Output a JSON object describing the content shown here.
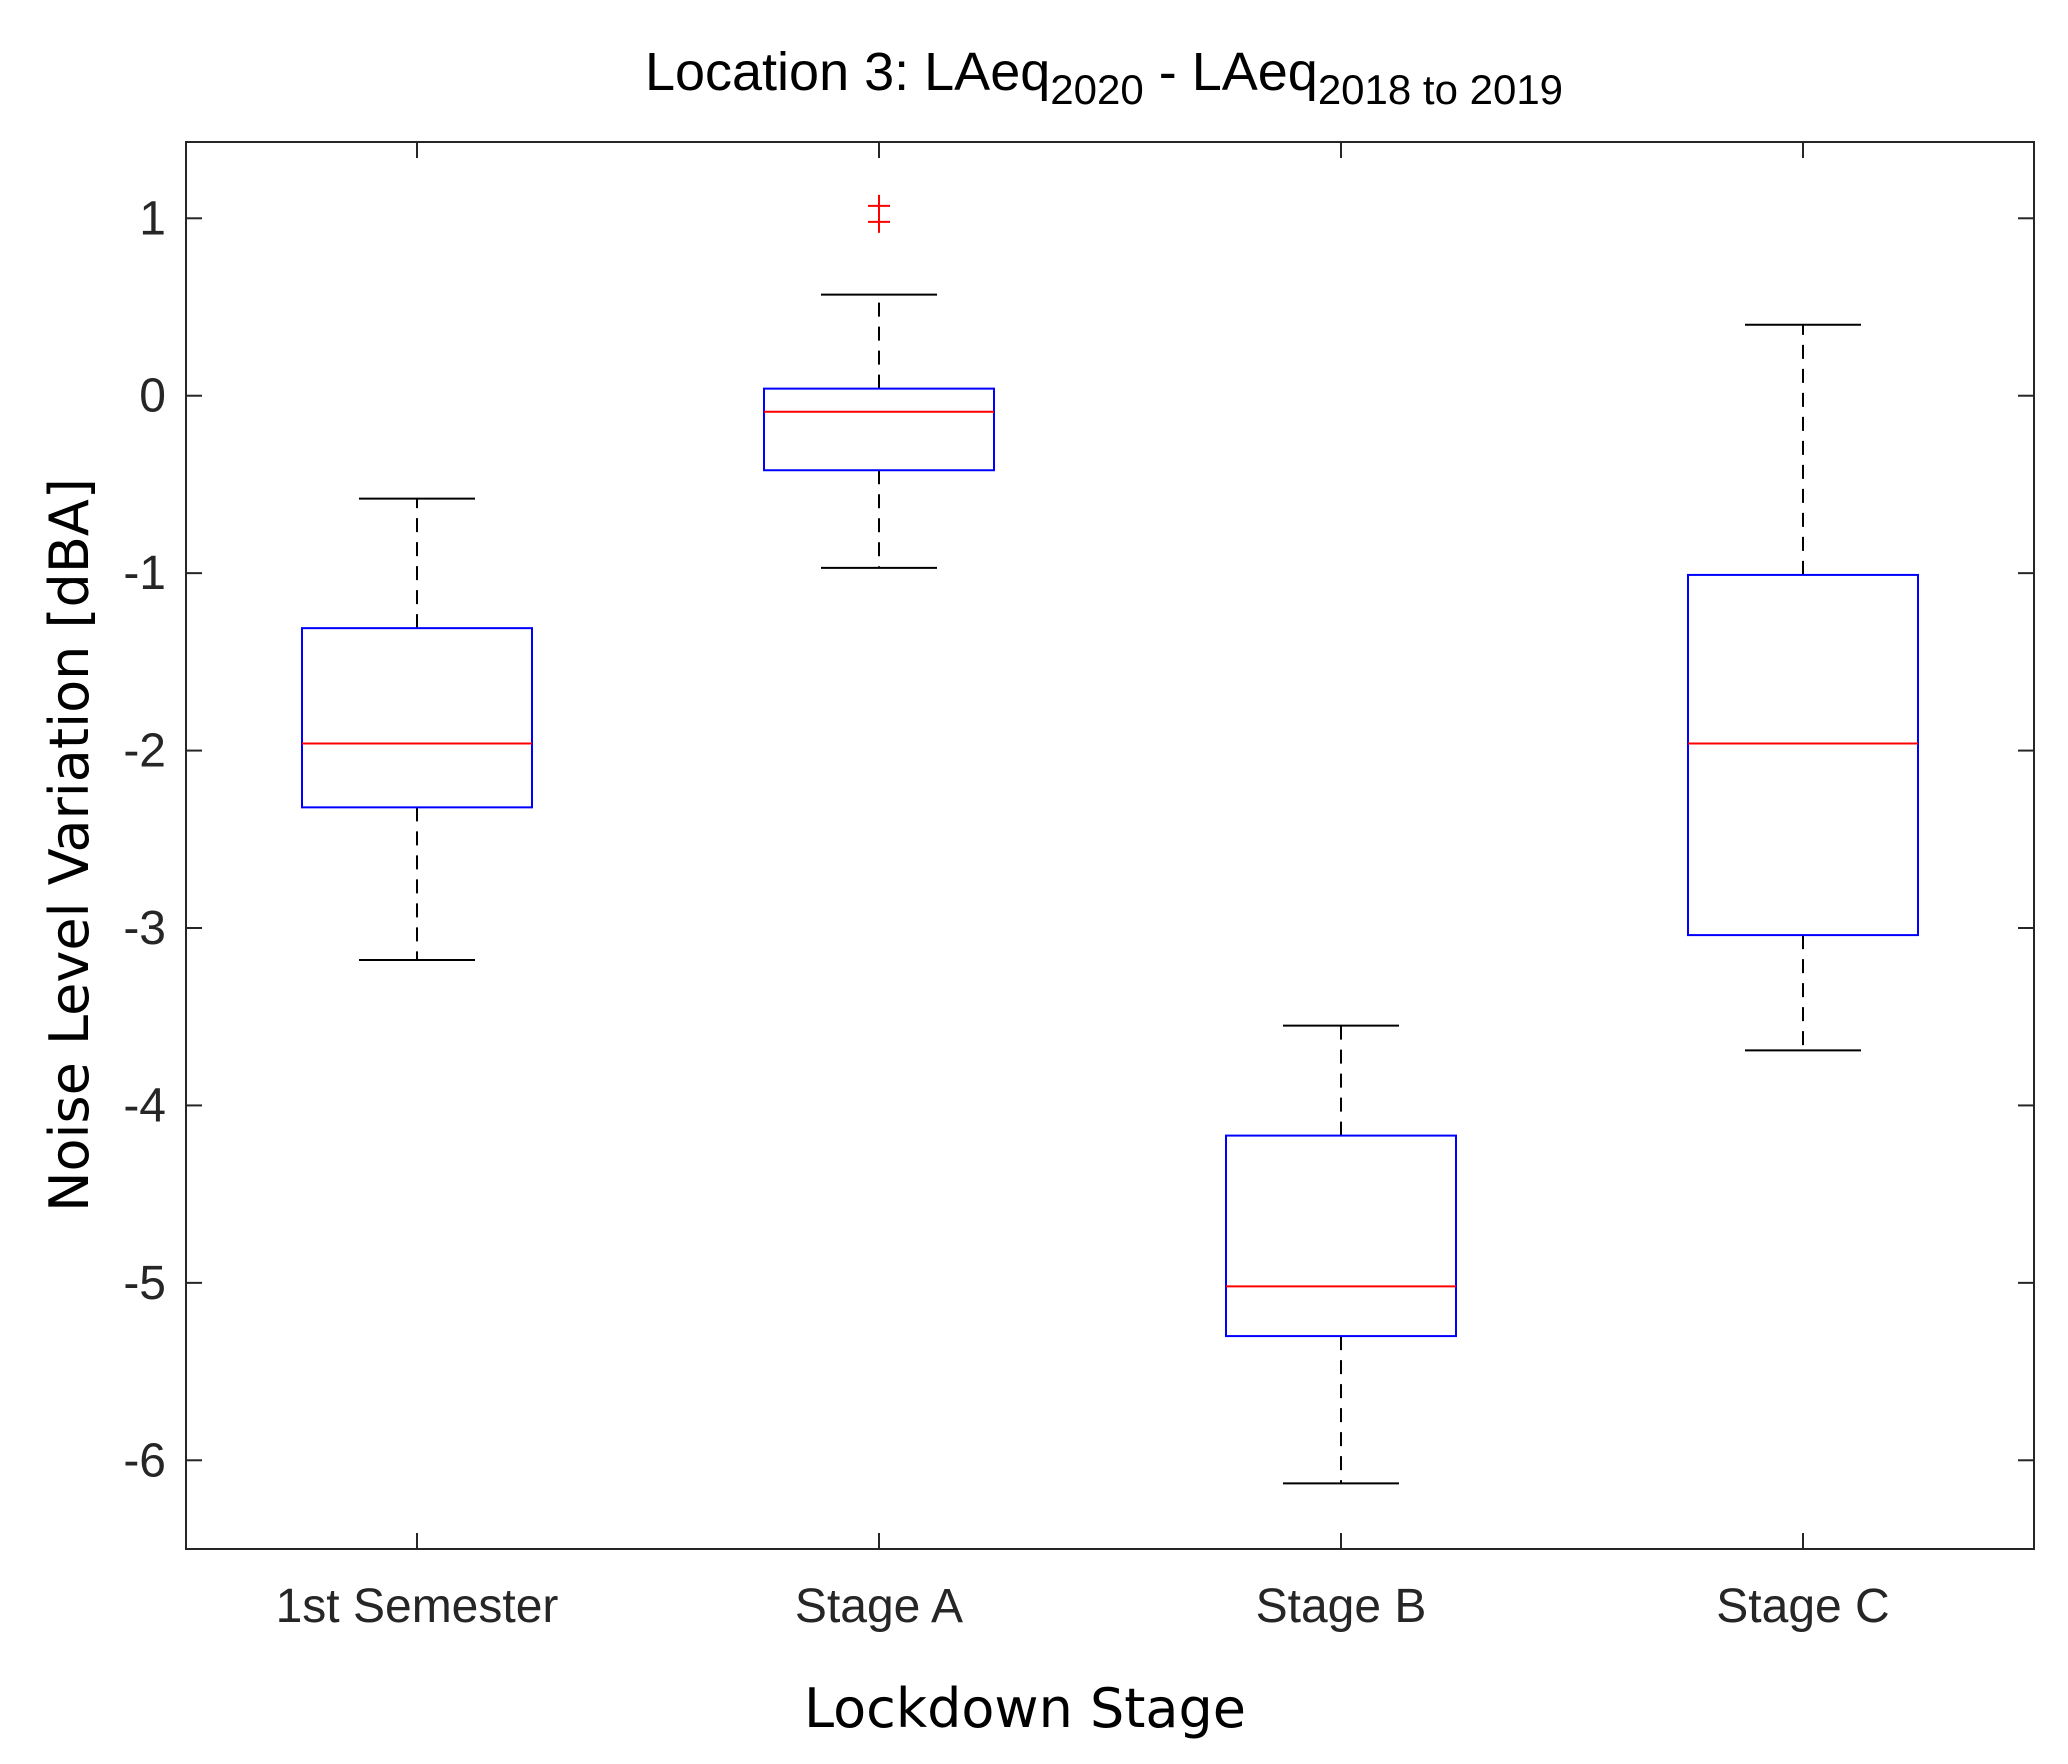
{
  "chart_data": {
    "type": "boxplot",
    "title": {
      "prefix": "Location 3: LAeq",
      "sub1": "2020",
      "middle": " - LAeq",
      "sub2": "2018 to 2019"
    },
    "xlabel": "Lockdown Stage",
    "ylabel": "Noise Level Variation [dBA]",
    "ylim": [
      -6.5,
      1.43
    ],
    "yticks": [
      1,
      0,
      -1,
      -2,
      -3,
      -4,
      -5,
      -6
    ],
    "categories": [
      "1st Semester",
      "Stage A",
      "Stage B",
      "Stage C"
    ],
    "boxes": [
      {
        "category": "1st Semester",
        "whisker_low": -3.18,
        "q1": -2.32,
        "median": -1.96,
        "q3": -1.31,
        "whisker_high": -0.58,
        "outliers": []
      },
      {
        "category": "Stage A",
        "whisker_low": -0.97,
        "q1": -0.42,
        "median": -0.09,
        "q3": 0.04,
        "whisker_high": 0.57,
        "outliers": [
          0.98,
          1.07
        ]
      },
      {
        "category": "Stage B",
        "whisker_low": -6.13,
        "q1": -5.3,
        "median": -5.02,
        "q3": -4.17,
        "whisker_high": -3.55,
        "outliers": []
      },
      {
        "category": "Stage C",
        "whisker_low": -3.69,
        "q1": -3.04,
        "median": -1.96,
        "q3": -1.01,
        "whisker_high": 0.4,
        "outliers": []
      }
    ],
    "colors": {
      "box": "#0000ff",
      "median": "#ff0000",
      "whisker": "#000000",
      "outlier": "#ff0000",
      "axis": "#262626"
    }
  }
}
